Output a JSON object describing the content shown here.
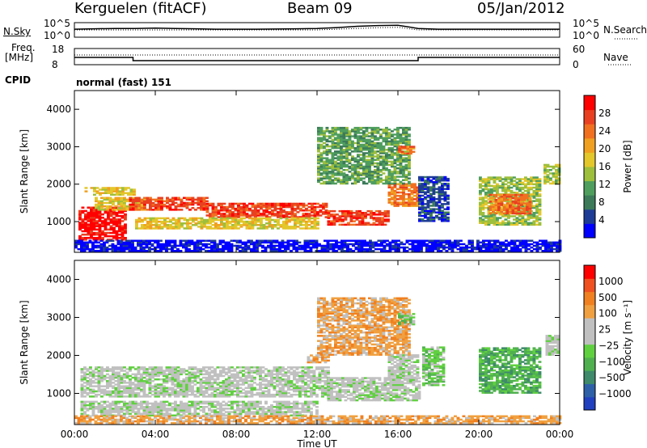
{
  "header": {
    "station": "Kerguelen (fitACF)",
    "beam": "Beam 09",
    "date": "05/Jan/2012"
  },
  "noise_panel": {
    "left_label": "N.Sky",
    "left_ticks": [
      "10^5",
      "10^0"
    ],
    "right_label": "N.Search",
    "right_ticks": [
      "10^5",
      "10^0"
    ],
    "series": [
      {
        "name": "N.Sky",
        "style": "solid",
        "x": [
          0,
          1,
          2,
          3,
          4,
          5,
          6,
          7,
          8,
          9,
          10,
          11,
          12,
          13,
          14,
          15,
          16,
          17,
          18,
          19,
          20,
          21,
          22,
          23,
          24
        ],
        "y": [
          0.55,
          0.58,
          0.6,
          0.6,
          0.62,
          0.6,
          0.58,
          0.55,
          0.55,
          0.55,
          0.56,
          0.58,
          0.6,
          0.66,
          0.75,
          0.8,
          0.82,
          0.6,
          0.55,
          0.55,
          0.55,
          0.55,
          0.55,
          0.55,
          0.55
        ]
      },
      {
        "name": "N.Search",
        "style": "dotted",
        "x": [
          0,
          4,
          8,
          12,
          13,
          14,
          15,
          16,
          17,
          18,
          24
        ],
        "y": [
          0.5,
          0.5,
          0.5,
          0.5,
          0.55,
          0.6,
          0.65,
          0.68,
          0.5,
          0.5,
          0.5
        ]
      }
    ]
  },
  "freq_panel": {
    "left_label_line1": "Freq.",
    "left_label_line2": "[MHz]",
    "left_ticks": [
      "18",
      "8"
    ],
    "right_label": "Nave",
    "right_ticks": [
      "60",
      "0"
    ],
    "cpid_label": "CPID",
    "mode_text": "normal (fast) 151",
    "freq_series": {
      "x": [
        0,
        2.9,
        2.9,
        17,
        17,
        24
      ],
      "y_mhz": [
        12.5,
        12.5,
        10.5,
        10.5,
        12.5,
        12.5
      ]
    },
    "nave_series": {
      "x": [
        0,
        2.9,
        2.9,
        17,
        17,
        24
      ],
      "y": [
        36,
        36,
        36,
        36,
        36,
        36
      ]
    }
  },
  "chart_data": [
    {
      "type": "heatmap",
      "title": "",
      "ylabel": "Slant Range [km]",
      "xlabel": "",
      "x_ticks": [
        "00:00",
        "04:00",
        "08:00",
        "12:00",
        "16:00",
        "20:00",
        "00:00"
      ],
      "y_ticks": [
        "1000",
        "2000",
        "3000",
        "4000"
      ],
      "xlim_hours": [
        0,
        24
      ],
      "ylim_km": [
        180,
        4500
      ],
      "colorbar": {
        "label": "Power [dB]",
        "ticks": [
          "4",
          "8",
          "12",
          "16",
          "20",
          "24",
          "28"
        ],
        "colors": [
          "#0000ff",
          "#1e3c96",
          "#3c7a5a",
          "#4f9e5e",
          "#9dbf3c",
          "#e3c72b",
          "#f0a020",
          "#f07020",
          "#e84020",
          "#ff0000"
        ]
      },
      "blobs": [
        {
          "t0": 0.2,
          "t1": 2.5,
          "r0": 500,
          "r1": 1400,
          "level": 9
        },
        {
          "t0": 1.0,
          "t1": 3.5,
          "r0": 1300,
          "r1": 1650,
          "level": 5
        },
        {
          "t0": 2.7,
          "t1": 6.5,
          "r0": 1300,
          "r1": 1650,
          "level": 8
        },
        {
          "t0": 6.5,
          "t1": 12.5,
          "r0": 1100,
          "r1": 1500,
          "level": 8
        },
        {
          "t0": 12.5,
          "t1": 15.5,
          "r0": 900,
          "r1": 1300,
          "level": 8
        },
        {
          "t0": 15.5,
          "t1": 17.0,
          "r0": 1400,
          "r1": 2000,
          "level": 7
        },
        {
          "t0": 3.0,
          "t1": 12.0,
          "r0": 800,
          "r1": 1100,
          "level": 5
        },
        {
          "t0": 0.5,
          "t1": 3.0,
          "r0": 1700,
          "r1": 1900,
          "level": 5
        },
        {
          "t0": 12.0,
          "t1": 16.5,
          "r0": 2000,
          "r1": 3500,
          "level": 3
        },
        {
          "t0": 16.0,
          "t1": 16.8,
          "r0": 2800,
          "r1": 3000,
          "level": 7
        },
        {
          "t0": 17.0,
          "t1": 18.5,
          "r0": 1000,
          "r1": 2200,
          "level": 1
        },
        {
          "t0": 20.0,
          "t1": 23.0,
          "r0": 900,
          "r1": 2200,
          "level": 4
        },
        {
          "t0": 20.5,
          "t1": 22.5,
          "r0": 1200,
          "r1": 1700,
          "level": 7
        },
        {
          "t0": 23.2,
          "t1": 24.0,
          "r0": 2000,
          "r1": 2500,
          "level": 4
        },
        {
          "t0": 0.0,
          "t1": 24.0,
          "r0": 200,
          "r1": 500,
          "level": 0
        }
      ]
    },
    {
      "type": "heatmap",
      "title": "",
      "ylabel": "Slant Range [km]",
      "xlabel": "Time UT",
      "x_ticks": [
        "00:00",
        "04:00",
        "08:00",
        "12:00",
        "16:00",
        "20:00",
        "00:00"
      ],
      "y_ticks": [
        "1000",
        "2000",
        "3000",
        "4000"
      ],
      "xlim_hours": [
        0,
        24
      ],
      "ylim_km": [
        180,
        4500
      ],
      "colorbar": {
        "label": "Velocity [m s⁻¹]",
        "ticks": [
          "1000",
          "500",
          "100",
          "25",
          "−25",
          "−100",
          "−500",
          "−1000"
        ],
        "colors": [
          "#2040c0",
          "#2e60a8",
          "#3e8a6a",
          "#50b050",
          "#60d040",
          "#c0c0c0",
          "#c0c0c0",
          "#f0a040",
          "#f08020",
          "#f05020",
          "#ff0000"
        ]
      },
      "blobs": [
        {
          "t0": 0.3,
          "t1": 12.5,
          "r0": 900,
          "r1": 1700,
          "level": 5
        },
        {
          "t0": 12.5,
          "t1": 17.0,
          "r0": 800,
          "r1": 1400,
          "level": 5
        },
        {
          "t0": 15.5,
          "t1": 17.0,
          "r0": 1400,
          "r1": 2000,
          "level": 5
        },
        {
          "t0": 0.3,
          "t1": 12.0,
          "r0": 400,
          "r1": 800,
          "level": 5
        },
        {
          "t0": 11.5,
          "t1": 12.5,
          "r0": 1800,
          "r1": 2000,
          "level": 7
        },
        {
          "t0": 12.0,
          "t1": 16.5,
          "r0": 2000,
          "r1": 3500,
          "level": 7
        },
        {
          "t0": 16.0,
          "t1": 16.8,
          "r0": 2800,
          "r1": 3100,
          "level": 4
        },
        {
          "t0": 17.2,
          "t1": 18.3,
          "r0": 1200,
          "r1": 2200,
          "level": 4
        },
        {
          "t0": 20.0,
          "t1": 23.0,
          "r0": 1000,
          "r1": 2200,
          "level": 3
        },
        {
          "t0": 23.3,
          "t1": 24.0,
          "r0": 2000,
          "r1": 2500,
          "level": 5
        },
        {
          "t0": 0.0,
          "t1": 24.0,
          "r0": 200,
          "r1": 400,
          "level": 7
        }
      ]
    }
  ]
}
